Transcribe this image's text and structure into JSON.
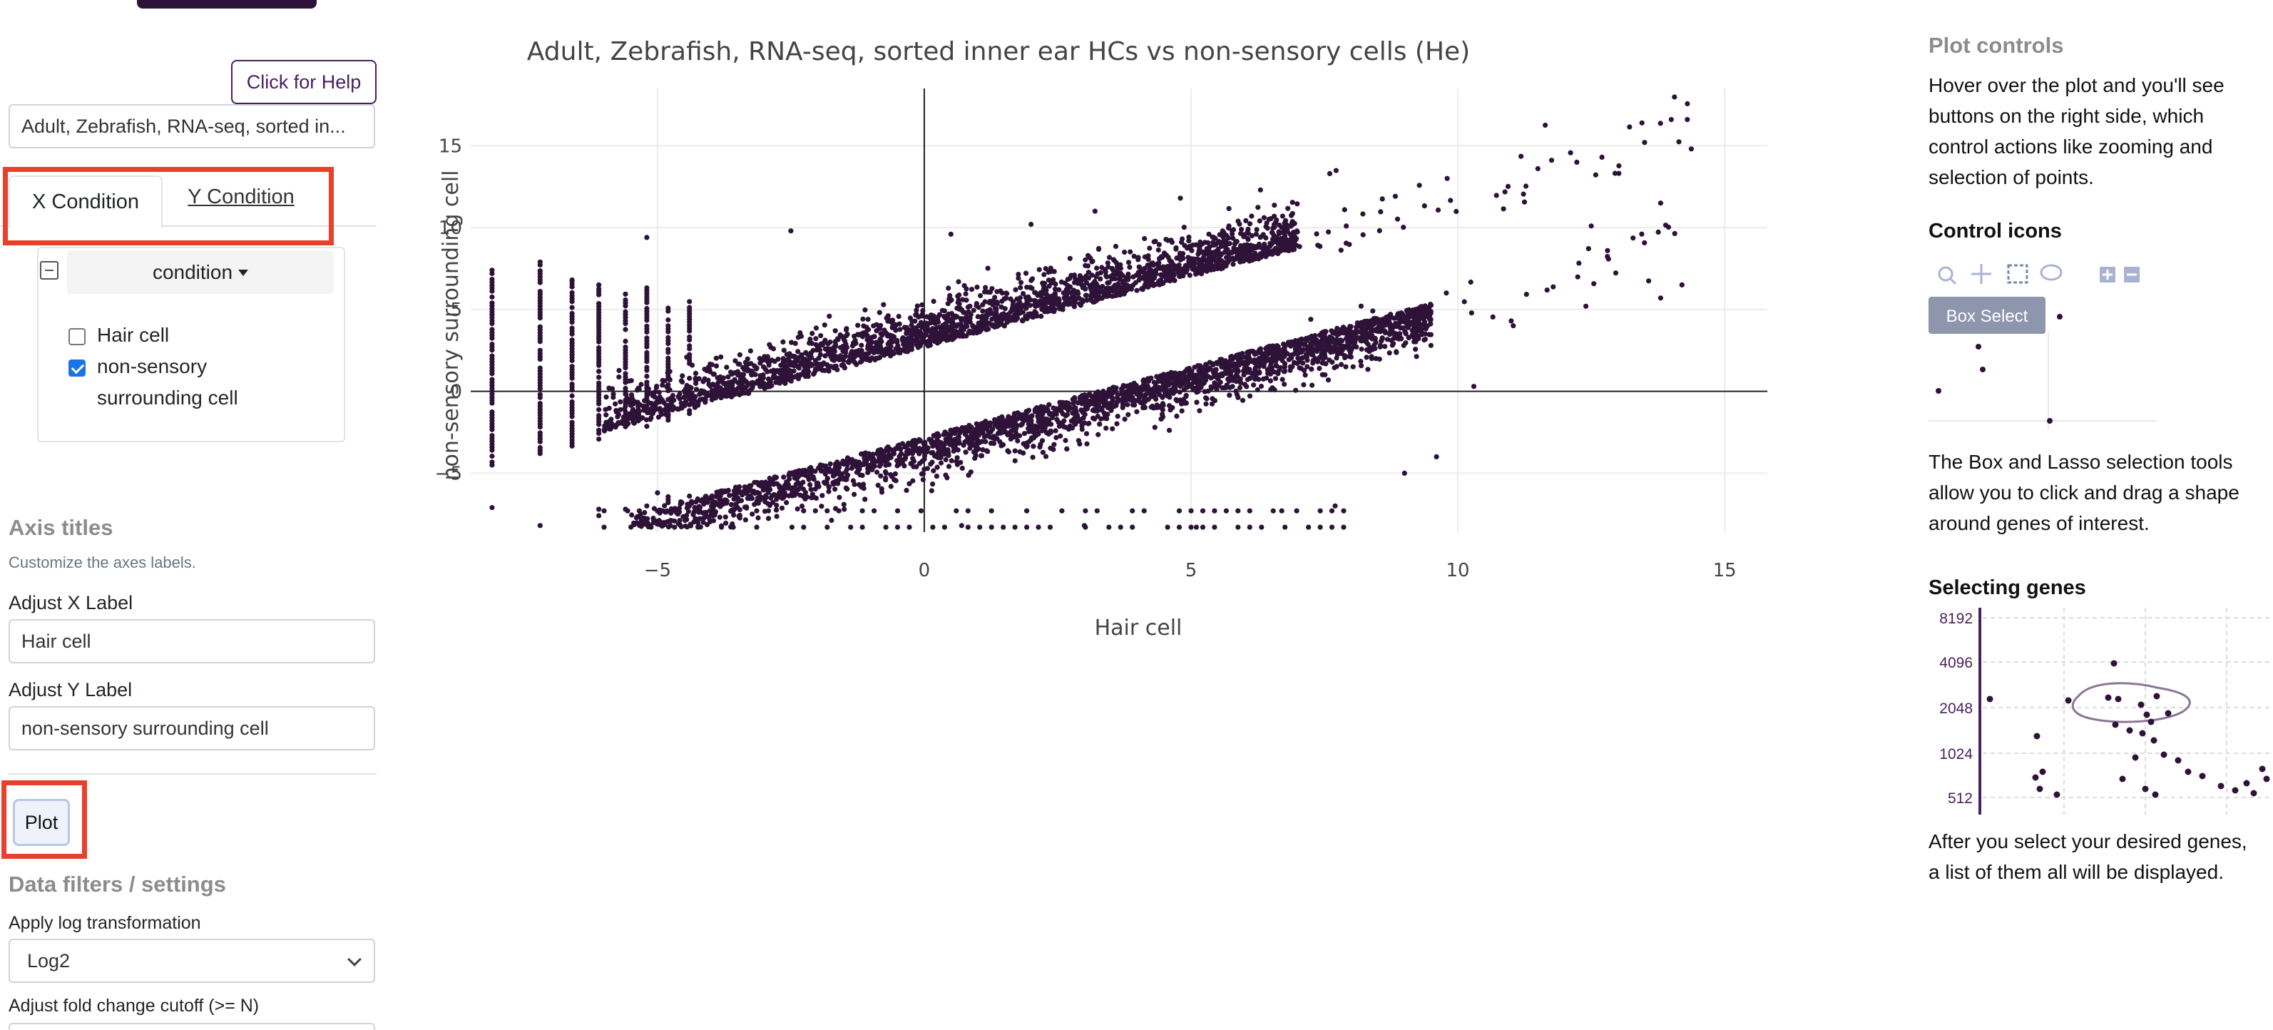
{
  "sidebar": {
    "help_button": "Click for Help",
    "dataset_value": "Adult, Zebrafish, RNA-seq, sorted in...",
    "tabs": [
      {
        "label": "X Condition",
        "active": true
      },
      {
        "label": "Y Condition",
        "active": false
      }
    ],
    "condition_dropdown": "condition",
    "conditions": [
      {
        "label": "Hair cell",
        "checked": false
      },
      {
        "label": "non-sensory",
        "label_line2": "surrounding cell",
        "checked": true
      }
    ],
    "axis_titles": {
      "title": "Axis titles",
      "subtitle": "Customize the axes labels.",
      "x_label": "Adjust X Label",
      "x_value": "Hair cell",
      "y_label": "Adjust Y Label",
      "y_value": "non-sensory surrounding cell"
    },
    "plot_button": "Plot",
    "filters": {
      "title": "Data filters / settings",
      "log_label": "Apply log transformation",
      "log_value": "Log2",
      "cutoff_label": "Adjust fold change cutoff (>= N)"
    }
  },
  "chart_data": {
    "type": "scatter",
    "title": "Adult, Zebrafish, RNA-seq, sorted inner ear HCs vs non-sensory cells (He)",
    "xlabel": "Hair cell",
    "ylabel": "non-sensory surrounding cell",
    "xlim": [
      -8.5,
      15.8
    ],
    "ylim": [
      -8.6,
      18.5
    ],
    "x_ticks": [
      -5,
      0,
      5,
      10,
      15
    ],
    "y_ticks": [
      -5,
      0,
      5,
      10,
      15
    ],
    "grid": true,
    "marker_color": "#2e1238",
    "description_points": "dense band of genes along y = x with a cut-out gap around the diagonal (fold change filter); points concentrated between x -8 and 10",
    "sample_points": [
      [
        -8.1,
        7.4
      ],
      [
        -8.1,
        -7.1
      ],
      [
        -7.2,
        7.9
      ],
      [
        -7.2,
        -8.2
      ],
      [
        -6.6,
        6.8
      ],
      [
        -6.1,
        6.5
      ],
      [
        -5.2,
        9.4
      ],
      [
        -2.5,
        9.8
      ],
      [
        0.5,
        9.6
      ],
      [
        2.0,
        10.2
      ],
      [
        3.2,
        11.0
      ],
      [
        4.8,
        11.8
      ],
      [
        6.3,
        12.3
      ],
      [
        7.6,
        13.3
      ],
      [
        9.8,
        13.0
      ],
      [
        11.5,
        13.6
      ],
      [
        12.7,
        14.3
      ],
      [
        13.5,
        15.2
      ],
      [
        14.0,
        16.6
      ],
      [
        14.3,
        16.6
      ],
      [
        13.8,
        11.5
      ],
      [
        12.5,
        10.1
      ],
      [
        14.2,
        6.5
      ],
      [
        13.8,
        5.7
      ],
      [
        12.4,
        5.2
      ],
      [
        11.0,
        4.3
      ],
      [
        10.3,
        0.3
      ],
      [
        9.6,
        -4.0
      ],
      [
        9.0,
        -5.0
      ],
      [
        7.7,
        -7.0
      ],
      [
        6.7,
        -7.3
      ],
      [
        5.1,
        -8.3
      ],
      [
        3.0,
        -8.2
      ],
      [
        0.7,
        -8.2
      ],
      [
        -1.5,
        -7.2
      ],
      [
        -3.5,
        -6.2
      ],
      [
        -5.0,
        -6.2
      ],
      [
        -6.1,
        -7.2
      ]
    ]
  },
  "help_panel": {
    "plot_controls_title": "Plot controls",
    "plot_controls_text": "Hover over the plot and you'll see buttons on the right side, which control actions like zooming and selection of points.",
    "control_icons_title": "Control icons",
    "tooltip": "Box Select",
    "lasso_text": "The Box and Lasso selection tools allow you to click and drag a shape around genes of interest.",
    "selecting_title": "Selecting genes",
    "mini_ticks": [
      "8192",
      "4096",
      "2048",
      "1024",
      "512"
    ],
    "after_text": "After you select your desired genes, a list of them all will be displayed."
  }
}
